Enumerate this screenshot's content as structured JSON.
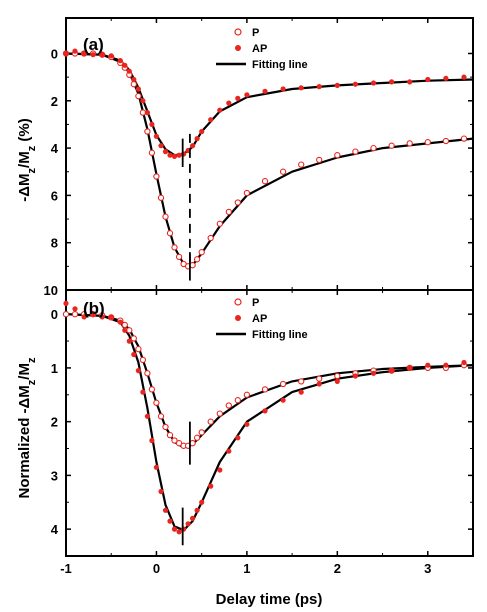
{
  "chart_data": [
    {
      "type": "scatter",
      "panel_label": "(a)",
      "ylabel_main": "-ΔM",
      "ylabel_sub1": "z",
      "ylabel_mid": "/M",
      "ylabel_sub2": "z",
      "ylabel_unit": " (%)",
      "xlim": [
        -1,
        3.5
      ],
      "ylim": [
        10,
        -1.5
      ],
      "y_inverted": true,
      "yticks": [
        0,
        2,
        4,
        6,
        8,
        10
      ],
      "xticks": [
        -1,
        0,
        1,
        2,
        3
      ],
      "legend_position": "top-center",
      "legend": [
        {
          "label": "P",
          "marker": "open-circle",
          "color": "#e8251f"
        },
        {
          "label": "AP",
          "marker": "filled-circle",
          "color": "#e8251f"
        },
        {
          "label": "Fitting line",
          "marker": "line",
          "color": "#000000"
        }
      ],
      "series": [
        {
          "name": "P",
          "marker": "open-circle",
          "color": "#e8251f",
          "x": [
            -1.0,
            -0.9,
            -0.8,
            -0.7,
            -0.6,
            -0.5,
            -0.4,
            -0.35,
            -0.3,
            -0.25,
            -0.2,
            -0.15,
            -0.1,
            -0.05,
            0.0,
            0.05,
            0.1,
            0.15,
            0.2,
            0.25,
            0.3,
            0.35,
            0.4,
            0.45,
            0.5,
            0.6,
            0.7,
            0.8,
            0.9,
            1.0,
            1.2,
            1.4,
            1.6,
            1.8,
            2.0,
            2.2,
            2.4,
            2.6,
            2.8,
            3.0,
            3.2,
            3.4
          ],
          "y": [
            0,
            0,
            0,
            0,
            0.05,
            0.15,
            0.4,
            0.6,
            0.9,
            1.3,
            1.8,
            2.5,
            3.3,
            4.2,
            5.2,
            6.1,
            6.9,
            7.6,
            8.2,
            8.6,
            8.9,
            9.0,
            8.95,
            8.7,
            8.4,
            7.8,
            7.2,
            6.7,
            6.3,
            5.9,
            5.4,
            5.0,
            4.7,
            4.5,
            4.3,
            4.15,
            4.0,
            3.9,
            3.8,
            3.75,
            3.7,
            3.6
          ]
        },
        {
          "name": "AP",
          "marker": "filled-circle",
          "color": "#e8251f",
          "x": [
            -1.0,
            -0.9,
            -0.8,
            -0.7,
            -0.6,
            -0.5,
            -0.4,
            -0.35,
            -0.3,
            -0.25,
            -0.2,
            -0.15,
            -0.1,
            -0.05,
            0.0,
            0.05,
            0.1,
            0.15,
            0.2,
            0.25,
            0.3,
            0.35,
            0.4,
            0.45,
            0.5,
            0.6,
            0.7,
            0.8,
            0.9,
            1.0,
            1.2,
            1.4,
            1.6,
            1.8,
            2.0,
            2.2,
            2.4,
            2.6,
            2.8,
            3.0,
            3.2,
            3.4
          ],
          "y": [
            0,
            -0.1,
            0,
            0.05,
            0.05,
            0.1,
            0.3,
            0.5,
            0.75,
            1.1,
            1.5,
            2.0,
            2.5,
            3.0,
            3.5,
            3.9,
            4.15,
            4.3,
            4.35,
            4.3,
            4.25,
            4.1,
            3.9,
            3.6,
            3.3,
            2.8,
            2.4,
            2.1,
            1.9,
            1.75,
            1.6,
            1.5,
            1.45,
            1.4,
            1.35,
            1.3,
            1.25,
            1.2,
            1.2,
            1.1,
            1.05,
            1.0
          ]
        }
      ],
      "fit_lines": [
        {
          "x": [
            -1.0,
            -0.6,
            -0.4,
            -0.3,
            -0.2,
            -0.1,
            0.0,
            0.1,
            0.2,
            0.3,
            0.35,
            0.4,
            0.5,
            0.7,
            1.0,
            1.5,
            2.0,
            2.5,
            3.0,
            3.5
          ],
          "y": [
            0,
            0.05,
            0.35,
            0.8,
            1.7,
            3.2,
            5.1,
            6.9,
            8.2,
            8.9,
            9.05,
            8.95,
            8.45,
            7.3,
            6.0,
            5.0,
            4.4,
            4.0,
            3.8,
            3.6
          ]
        },
        {
          "x": [
            -1.0,
            -0.6,
            -0.4,
            -0.3,
            -0.2,
            -0.1,
            0.0,
            0.1,
            0.2,
            0.3,
            0.4,
            0.5,
            0.7,
            1.0,
            1.5,
            2.0,
            2.5,
            3.0,
            3.5
          ],
          "y": [
            0,
            0.05,
            0.3,
            0.7,
            1.45,
            2.45,
            3.45,
            4.05,
            4.3,
            4.25,
            3.95,
            3.3,
            2.45,
            1.85,
            1.5,
            1.35,
            1.25,
            1.15,
            1.1
          ]
        }
      ],
      "markers": [
        {
          "style": "solid",
          "x": 0.29,
          "y1": 3.6,
          "y2": 4.8
        },
        {
          "style": "solid",
          "x": 0.37,
          "y1": 8.4,
          "y2": 9.6
        },
        {
          "style": "dashed",
          "x": 0.37,
          "y1": 3.4,
          "y2": 9.0
        }
      ]
    },
    {
      "type": "scatter",
      "panel_label": "(b)",
      "ylabel_main": "Normalized -ΔM",
      "ylabel_sub1": "z",
      "ylabel_mid": "/M",
      "ylabel_sub2": "z",
      "ylabel_unit": "",
      "xlabel": "Delay time (ps)",
      "xlim": [
        -1,
        3.5
      ],
      "ylim": [
        4.5,
        -0.45
      ],
      "y_inverted": true,
      "yticks": [
        0,
        1,
        2,
        3,
        4
      ],
      "xticks": [
        -1,
        0,
        1,
        2,
        3
      ],
      "legend_position": "top-center",
      "legend": [
        {
          "label": "P",
          "marker": "open-circle",
          "color": "#e8251f"
        },
        {
          "label": "AP",
          "marker": "filled-circle",
          "color": "#e8251f"
        },
        {
          "label": "Fitting line",
          "marker": "line",
          "color": "#000000"
        }
      ],
      "series": [
        {
          "name": "P",
          "marker": "open-circle",
          "color": "#e8251f",
          "x": [
            -1.0,
            -0.9,
            -0.8,
            -0.7,
            -0.6,
            -0.5,
            -0.4,
            -0.35,
            -0.3,
            -0.25,
            -0.2,
            -0.15,
            -0.1,
            -0.05,
            0.0,
            0.05,
            0.1,
            0.15,
            0.2,
            0.25,
            0.3,
            0.35,
            0.4,
            0.45,
            0.5,
            0.6,
            0.7,
            0.8,
            0.9,
            1.0,
            1.2,
            1.4,
            1.6,
            1.8,
            2.0,
            2.2,
            2.4,
            2.6,
            2.8,
            3.0,
            3.2,
            3.4
          ],
          "y": [
            0,
            0,
            0,
            0,
            0.02,
            0.06,
            0.12,
            0.2,
            0.3,
            0.45,
            0.65,
            0.85,
            1.1,
            1.4,
            1.65,
            1.9,
            2.1,
            2.25,
            2.35,
            2.4,
            2.45,
            2.45,
            2.4,
            2.3,
            2.2,
            2.0,
            1.85,
            1.7,
            1.6,
            1.5,
            1.4,
            1.3,
            1.25,
            1.2,
            1.15,
            1.1,
            1.05,
            1.05,
            1.0,
            1.0,
            1.0,
            0.95
          ]
        },
        {
          "name": "AP",
          "marker": "filled-circle",
          "color": "#e8251f",
          "x": [
            -1.0,
            -0.9,
            -0.8,
            -0.7,
            -0.6,
            -0.5,
            -0.4,
            -0.35,
            -0.3,
            -0.25,
            -0.2,
            -0.15,
            -0.1,
            -0.05,
            0.0,
            0.05,
            0.1,
            0.15,
            0.2,
            0.25,
            0.3,
            0.35,
            0.4,
            0.45,
            0.5,
            0.6,
            0.7,
            0.8,
            0.9,
            1.0,
            1.2,
            1.4,
            1.6,
            1.8,
            2.0,
            2.2,
            2.4,
            2.6,
            2.8,
            3.0,
            3.2,
            3.4
          ],
          "y": [
            -0.2,
            -0.1,
            0.05,
            0,
            0.05,
            0.05,
            0.15,
            0.3,
            0.5,
            0.75,
            1.05,
            1.45,
            1.9,
            2.35,
            2.85,
            3.3,
            3.65,
            3.85,
            4.0,
            4.05,
            4.0,
            3.9,
            3.8,
            3.65,
            3.5,
            3.2,
            2.9,
            2.55,
            2.3,
            2.05,
            1.8,
            1.6,
            1.45,
            1.3,
            1.25,
            1.15,
            1.1,
            1.05,
            1.0,
            0.95,
            0.95,
            0.9
          ]
        }
      ],
      "fit_lines": [
        {
          "x": [
            -1.0,
            -0.6,
            -0.4,
            -0.3,
            -0.2,
            -0.1,
            0.0,
            0.1,
            0.2,
            0.3,
            0.4,
            0.5,
            0.7,
            1.0,
            1.5,
            2.0,
            2.5,
            3.0,
            3.5
          ],
          "y": [
            0,
            0.03,
            0.12,
            0.28,
            0.6,
            1.1,
            1.65,
            2.1,
            2.38,
            2.48,
            2.42,
            2.25,
            1.9,
            1.55,
            1.25,
            1.1,
            1.02,
            0.98,
            0.95
          ]
        },
        {
          "x": [
            -1.0,
            -0.6,
            -0.4,
            -0.3,
            -0.2,
            -0.1,
            0.0,
            0.1,
            0.2,
            0.3,
            0.4,
            0.5,
            0.7,
            1.0,
            1.5,
            2.0,
            2.5,
            3.0,
            3.5
          ],
          "y": [
            0,
            0.03,
            0.15,
            0.4,
            0.9,
            1.75,
            2.75,
            3.55,
            3.95,
            4.02,
            3.85,
            3.5,
            2.75,
            2.0,
            1.45,
            1.2,
            1.08,
            1.0,
            0.95
          ]
        }
      ],
      "markers": [
        {
          "style": "solid",
          "x": 0.29,
          "y1": 3.6,
          "y2": 4.3
        },
        {
          "style": "solid",
          "x": 0.37,
          "y1": 2.0,
          "y2": 2.8
        }
      ]
    }
  ]
}
